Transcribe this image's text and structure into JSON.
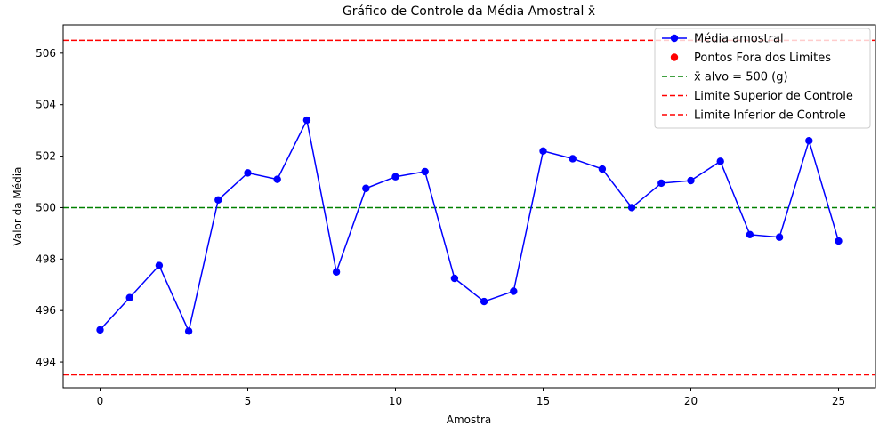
{
  "chart_data": {
    "type": "line",
    "title": "Gráfico de Controle da Média Amostral x̄",
    "xlabel": "Amostra",
    "ylabel": "Valor da Média",
    "xlim": [
      -1.25,
      26.25
    ],
    "ylim": [
      493.0,
      507.1
    ],
    "xticks": [
      0,
      5,
      10,
      15,
      20,
      25
    ],
    "yticks": [
      494,
      496,
      498,
      500,
      502,
      504,
      506
    ],
    "series": [
      {
        "name": "Média amostral",
        "color": "#0000ff",
        "x": [
          0,
          1,
          2,
          3,
          4,
          5,
          6,
          7,
          8,
          9,
          10,
          11,
          12,
          13,
          14,
          15,
          16,
          17,
          18,
          19,
          20,
          21,
          22,
          23,
          24,
          25
        ],
        "y": [
          495.25,
          496.5,
          497.75,
          495.2,
          500.3,
          501.35,
          501.1,
          503.4,
          497.5,
          500.75,
          501.2,
          501.4,
          497.25,
          496.35,
          496.75,
          502.2,
          501.9,
          501.5,
          500.0,
          500.95,
          501.05,
          501.8,
          498.95,
          498.85,
          502.6,
          498.7
        ]
      }
    ],
    "out_of_limits_points": [],
    "reference_lines": [
      {
        "name": "x̄ alvo = 500 (g)",
        "y": 500,
        "color": "#008000"
      },
      {
        "name": "Limite Superior de Controle",
        "y": 506.5,
        "color": "#ff0000"
      },
      {
        "name": "Limite Inferior de Controle",
        "y": 493.5,
        "color": "#ff0000"
      }
    ],
    "legend": {
      "placement": "top-right",
      "entries": [
        {
          "label": "Média amostral",
          "style": "line-marker",
          "color": "#0000ff"
        },
        {
          "label": "Pontos Fora dos Limites",
          "style": "marker",
          "color": "#ff0000"
        },
        {
          "label": "x̄ alvo = 500 (g)",
          "style": "dashed",
          "color": "#008000"
        },
        {
          "label": "Limite Superior de Controle",
          "style": "dashed",
          "color": "#ff0000"
        },
        {
          "label": "Limite Inferior de Controle",
          "style": "dashed",
          "color": "#ff0000"
        }
      ]
    }
  }
}
